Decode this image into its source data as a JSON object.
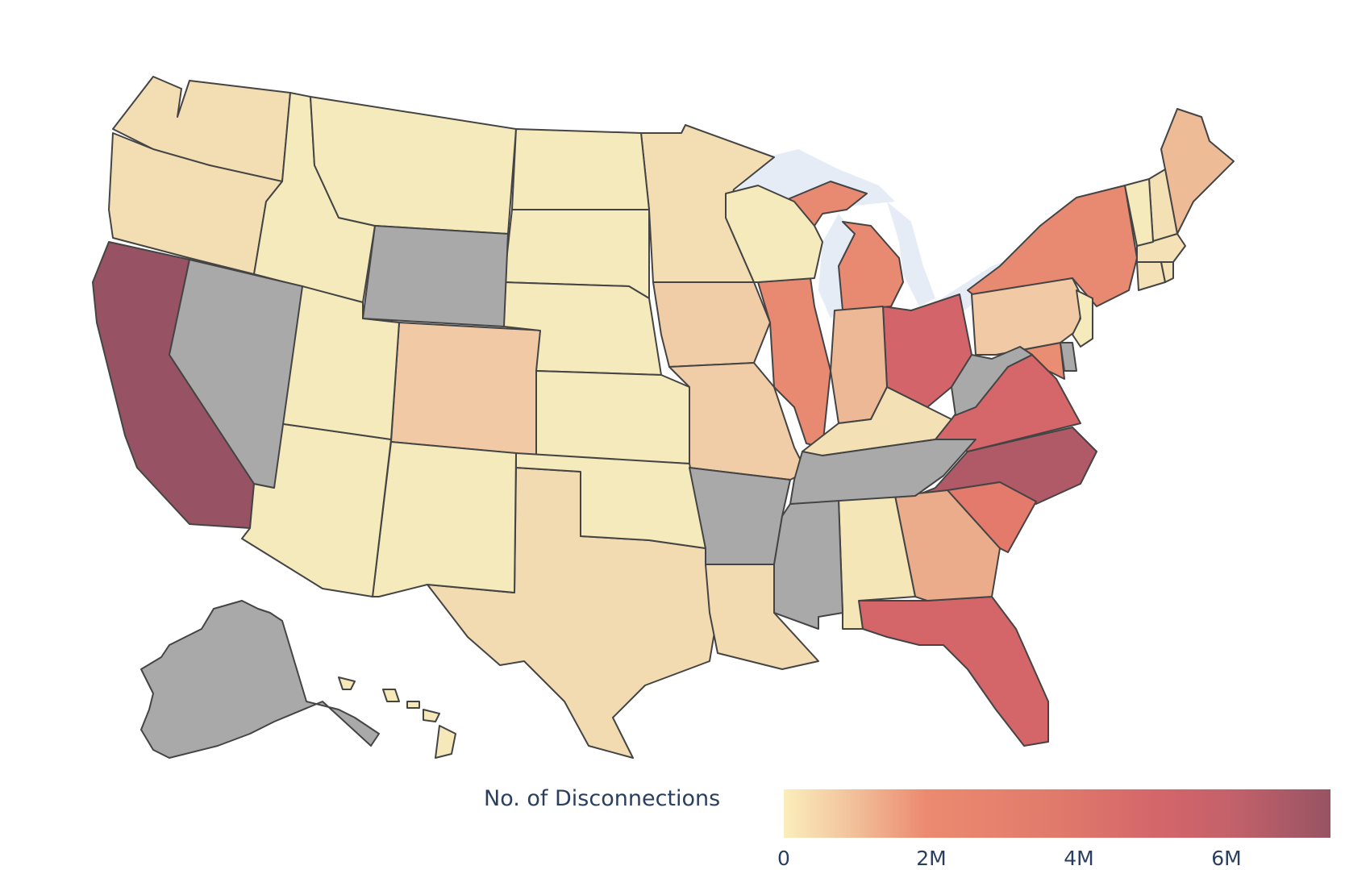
{
  "chart_data": {
    "type": "choropleth",
    "title": "",
    "scope": "USA",
    "colorbar": {
      "title": "No. of Disconnections",
      "orientation": "horizontal",
      "range": [
        0,
        7400000
      ],
      "tickvals": [
        0,
        2000000,
        4000000,
        6000000
      ],
      "ticktext": [
        "0",
        "2M",
        "4M",
        "6M"
      ],
      "colorscale": [
        "#fbe9b9",
        "#f2c39c",
        "#ec8a70",
        "#e07a6b",
        "#d4666a",
        "#c3616a",
        "#975363"
      ]
    },
    "missing_color": "#a9a9a9",
    "lake_color": "#e5ecf6",
    "states": [
      {
        "code": "CA",
        "name": "California",
        "value": 7400000,
        "color": "#975363"
      },
      {
        "code": "NC",
        "name": "North Carolina",
        "value": 5800000,
        "color": "#b05a67"
      },
      {
        "code": "OH",
        "name": "Ohio",
        "value": 4200000,
        "color": "#d3656a"
      },
      {
        "code": "VA",
        "name": "Virginia",
        "value": 4000000,
        "color": "#d5666a"
      },
      {
        "code": "FL",
        "name": "Florida",
        "value": 4100000,
        "color": "#d4666a"
      },
      {
        "code": "SC",
        "name": "South Carolina",
        "value": 2700000,
        "color": "#e37a6b"
      },
      {
        "code": "NY",
        "name": "New York",
        "value": 2100000,
        "color": "#e88a72"
      },
      {
        "code": "MI",
        "name": "Michigan",
        "value": 2100000,
        "color": "#e88a72"
      },
      {
        "code": "IL",
        "name": "Illinois",
        "value": 2100000,
        "color": "#e88a72"
      },
      {
        "code": "MD",
        "name": "Maryland",
        "value": 2000000,
        "color": "#ea8e73"
      },
      {
        "code": "GA",
        "name": "Georgia",
        "value": 1500000,
        "color": "#ebac8b"
      },
      {
        "code": "IN",
        "name": "Indiana",
        "value": 1200000,
        "color": "#edb896"
      },
      {
        "code": "ME",
        "name": "Maine",
        "value": 1100000,
        "color": "#eebb97"
      },
      {
        "code": "CO",
        "name": "Colorado",
        "value": 850000,
        "color": "#f1c9a5"
      },
      {
        "code": "PA",
        "name": "Pennsylvania",
        "value": 800000,
        "color": "#f1caa5"
      },
      {
        "code": "IA",
        "name": "Iowa",
        "value": 750000,
        "color": "#f1cda7"
      },
      {
        "code": "MO",
        "name": "Missouri",
        "value": 750000,
        "color": "#f1cda7"
      },
      {
        "code": "TX",
        "name": "Texas",
        "value": 500000,
        "color": "#f3dbb1"
      },
      {
        "code": "LA",
        "name": "Louisiana",
        "value": 500000,
        "color": "#f3dbb1"
      },
      {
        "code": "WA",
        "name": "Washington",
        "value": 400000,
        "color": "#f3deb3"
      },
      {
        "code": "OR",
        "name": "Oregon",
        "value": 400000,
        "color": "#f3deb3"
      },
      {
        "code": "MN",
        "name": "Minnesota",
        "value": 400000,
        "color": "#f3deb3"
      },
      {
        "code": "KY",
        "name": "Kentucky",
        "value": 350000,
        "color": "#f4e0b5"
      },
      {
        "code": "NH",
        "name": "New Hampshire",
        "value": 350000,
        "color": "#f4e0b5"
      },
      {
        "code": "MA",
        "name": "Massachusetts",
        "value": 300000,
        "color": "#f4e2b6"
      },
      {
        "code": "CT",
        "name": "Connecticut",
        "value": 300000,
        "color": "#f4e2b6"
      },
      {
        "code": "RI",
        "name": "Rhode Island",
        "value": 300000,
        "color": "#f4e2b6"
      },
      {
        "code": "AL",
        "name": "Alabama",
        "value": 200000,
        "color": "#f5e6b8"
      },
      {
        "code": "HI",
        "name": "Hawaii",
        "value": 100000,
        "color": "#f5e9ba"
      },
      {
        "code": "ID",
        "name": "Idaho",
        "value": 50000,
        "color": "#f5eabb"
      },
      {
        "code": "MT",
        "name": "Montana",
        "value": 50000,
        "color": "#f5eabb"
      },
      {
        "code": "ND",
        "name": "North Dakota",
        "value": 50000,
        "color": "#f5eabb"
      },
      {
        "code": "SD",
        "name": "South Dakota",
        "value": 50000,
        "color": "#f5eabb"
      },
      {
        "code": "NE",
        "name": "Nebraska",
        "value": 50000,
        "color": "#f5eabb"
      },
      {
        "code": "KS",
        "name": "Kansas",
        "value": 50000,
        "color": "#f5eabb"
      },
      {
        "code": "OK",
        "name": "Oklahoma",
        "value": 50000,
        "color": "#f5eabb"
      },
      {
        "code": "NM",
        "name": "New Mexico",
        "value": 50000,
        "color": "#f5eabb"
      },
      {
        "code": "AZ",
        "name": "Arizona",
        "value": 50000,
        "color": "#f5eabb"
      },
      {
        "code": "UT",
        "name": "Utah",
        "value": 50000,
        "color": "#f5eabb"
      },
      {
        "code": "WI",
        "name": "Wisconsin",
        "value": 50000,
        "color": "#f5eabb"
      },
      {
        "code": "VT",
        "name": "Vermont",
        "value": 50000,
        "color": "#f5eabb"
      },
      {
        "code": "NJ",
        "name": "New Jersey",
        "value": 50000,
        "color": "#f5eabb"
      },
      {
        "code": "NV",
        "name": "Nevada",
        "value": null,
        "color": "#a9a9a9"
      },
      {
        "code": "WY",
        "name": "Wyoming",
        "value": null,
        "color": "#a9a9a9"
      },
      {
        "code": "AR",
        "name": "Arkansas",
        "value": null,
        "color": "#a9a9a9"
      },
      {
        "code": "MS",
        "name": "Mississippi",
        "value": null,
        "color": "#a9a9a9"
      },
      {
        "code": "TN",
        "name": "Tennessee",
        "value": null,
        "color": "#a9a9a9"
      },
      {
        "code": "WV",
        "name": "West Virginia",
        "value": null,
        "color": "#a9a9a9"
      },
      {
        "code": "DE",
        "name": "Delaware",
        "value": null,
        "color": "#a9a9a9"
      },
      {
        "code": "AK",
        "name": "Alaska",
        "value": null,
        "color": "#a9a9a9"
      }
    ]
  }
}
